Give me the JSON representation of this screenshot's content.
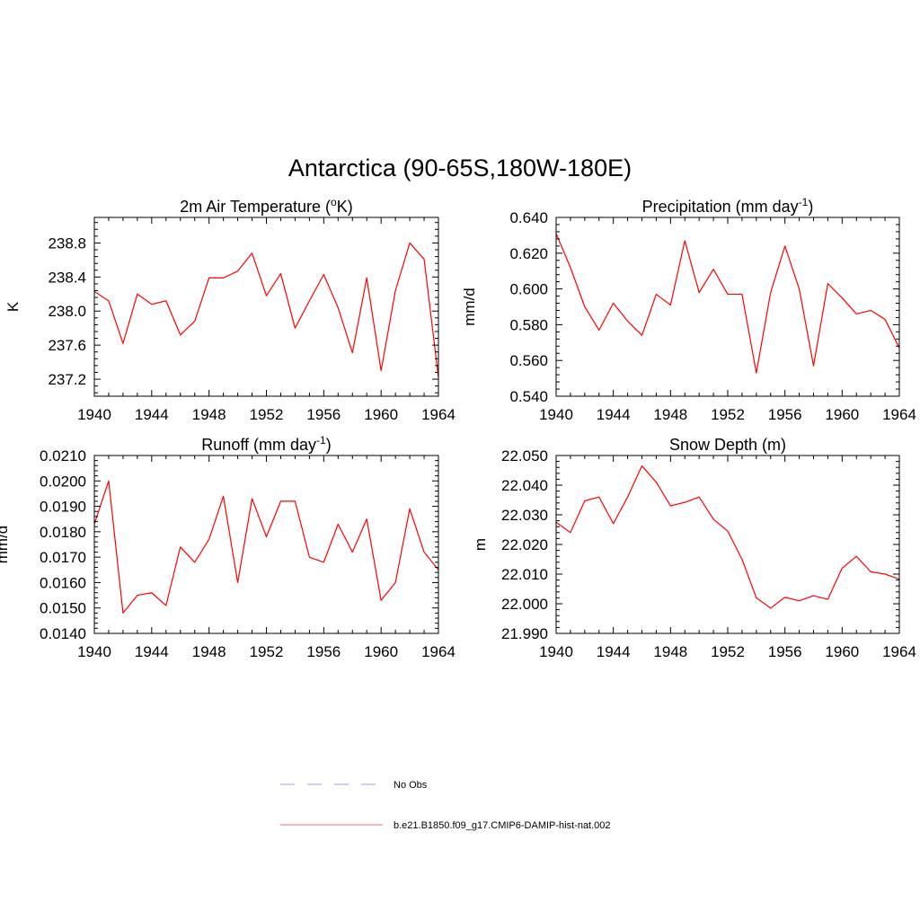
{
  "figure": {
    "title": "Antarctica (90-65S,180W-180E)"
  },
  "chart_data": [
    {
      "type": "line",
      "title": "2m Air Temperature (",
      "title_sup": "o",
      "title_after": "K)",
      "ylabel": "K",
      "xlim": [
        1940,
        1964
      ],
      "ylim": [
        237.0,
        239.1
      ],
      "xticks": [
        "1940",
        "1944",
        "1948",
        "1952",
        "1956",
        "1960",
        "1964"
      ],
      "yticks": [
        "237.2",
        "237.6",
        "238.0",
        "238.4",
        "238.8"
      ],
      "x": [
        1940,
        1941,
        1942,
        1943,
        1944,
        1945,
        1946,
        1947,
        1948,
        1949,
        1950,
        1951,
        1952,
        1953,
        1954,
        1955,
        1956,
        1957,
        1958,
        1959,
        1960,
        1961,
        1962,
        1963,
        1964
      ],
      "series": [
        {
          "color": "#ff0000",
          "values": [
            238.23,
            238.12,
            237.62,
            238.2,
            238.08,
            238.12,
            237.72,
            237.88,
            238.39,
            238.39,
            238.47,
            238.68,
            238.18,
            238.44,
            237.8,
            238.12,
            238.43,
            238.04,
            237.51,
            238.39,
            237.3,
            238.24,
            238.8,
            238.61,
            237.22
          ]
        }
      ]
    },
    {
      "type": "line",
      "title": "Precipitation (mm day",
      "title_sup": "-1",
      "title_after": ")",
      "ylabel": "mm/d",
      "xlim": [
        1940,
        1964
      ],
      "ylim": [
        0.54,
        0.64
      ],
      "xticks": [
        "1940",
        "1944",
        "1948",
        "1952",
        "1956",
        "1960",
        "1964"
      ],
      "yticks": [
        "0.540",
        "0.560",
        "0.580",
        "0.600",
        "0.620",
        "0.640"
      ],
      "x": [
        1940,
        1941,
        1942,
        1943,
        1944,
        1945,
        1946,
        1947,
        1948,
        1949,
        1950,
        1951,
        1952,
        1953,
        1954,
        1955,
        1956,
        1957,
        1958,
        1959,
        1960,
        1961,
        1962,
        1963,
        1964
      ],
      "series": [
        {
          "color": "#ff0000",
          "values": [
            0.631,
            0.612,
            0.59,
            0.577,
            0.592,
            0.582,
            0.574,
            0.597,
            0.591,
            0.627,
            0.598,
            0.611,
            0.597,
            0.597,
            0.553,
            0.598,
            0.624,
            0.6,
            0.557,
            0.603,
            0.595,
            0.586,
            0.588,
            0.583,
            0.567
          ]
        }
      ]
    },
    {
      "type": "line",
      "title": "Runoff (mm day",
      "title_sup": "-1",
      "title_after": ")",
      "ylabel": "mm/d",
      "xlim": [
        1940,
        1964
      ],
      "ylim": [
        0.014,
        0.021
      ],
      "xticks": [
        "1940",
        "1944",
        "1948",
        "1952",
        "1956",
        "1960",
        "1964"
      ],
      "yticks": [
        "0.0140",
        "0.0150",
        "0.0160",
        "0.0170",
        "0.0180",
        "0.0190",
        "0.0200",
        "0.0210"
      ],
      "x": [
        1940,
        1941,
        1942,
        1943,
        1944,
        1945,
        1946,
        1947,
        1948,
        1949,
        1950,
        1951,
        1952,
        1953,
        1954,
        1955,
        1956,
        1957,
        1958,
        1959,
        1960,
        1961,
        1962,
        1963,
        1964
      ],
      "series": [
        {
          "color": "#ff0000",
          "values": [
            0.0183,
            0.02,
            0.0148,
            0.0155,
            0.0156,
            0.0151,
            0.0174,
            0.0168,
            0.0177,
            0.0194,
            0.016,
            0.0193,
            0.0178,
            0.0192,
            0.0192,
            0.017,
            0.0168,
            0.0183,
            0.0172,
            0.0185,
            0.0153,
            0.016,
            0.0189,
            0.0172,
            0.0165
          ]
        }
      ]
    },
    {
      "type": "line",
      "title": "Snow Depth (m)",
      "title_sup": "",
      "title_after": "",
      "ylabel": "m",
      "xlim": [
        1940,
        1964
      ],
      "ylim": [
        21.99,
        22.05
      ],
      "xticks": [
        "1940",
        "1944",
        "1948",
        "1952",
        "1956",
        "1960",
        "1964"
      ],
      "yticks": [
        "21.990",
        "22.000",
        "22.010",
        "22.020",
        "22.030",
        "22.040",
        "22.050"
      ],
      "x": [
        1940,
        1941,
        1942,
        1943,
        1944,
        1945,
        1946,
        1947,
        1948,
        1949,
        1950,
        1951,
        1952,
        1953,
        1954,
        1955,
        1956,
        1957,
        1958,
        1959,
        1960,
        1961,
        1962,
        1963,
        1964
      ],
      "series": [
        {
          "color": "#ff0000",
          "values": [
            22.0275,
            22.024,
            22.0347,
            22.036,
            22.027,
            22.036,
            22.0465,
            22.041,
            22.033,
            22.0342,
            22.036,
            22.0285,
            22.0245,
            22.015,
            22.002,
            21.9985,
            22.0022,
            22.001,
            22.0027,
            22.0015,
            22.012,
            22.016,
            22.0108,
            22.01,
            22.0083
          ]
        }
      ]
    }
  ],
  "legend": [
    {
      "label": "No Obs",
      "color": "#9999ff",
      "dash": "dashed"
    },
    {
      "label": "b.e21.B1850.f09_g17.CMIP6-DAMIP-hist-nat.002",
      "color": "#ff6666",
      "dash": "solid"
    }
  ]
}
